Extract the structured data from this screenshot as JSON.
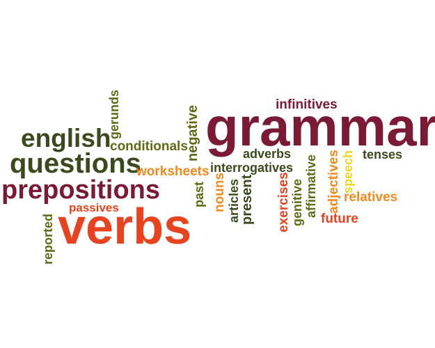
{
  "words": {
    "grammar": "grammar",
    "verbs": "verbs",
    "prepositions": "prepositions",
    "questions": "questions",
    "english": "english",
    "gerunds": "gerunds",
    "conditionals": "conditionals",
    "worksheets": "worksheets",
    "passives": "passives",
    "reported": "reported",
    "negative": "negative",
    "past": "past",
    "infinitives": "infinitives",
    "adverbs": "adverbs",
    "interrogatives": "interrogatives",
    "nouns": "nouns",
    "articles": "articles",
    "present": "present",
    "exercises": "exercises",
    "genitive": "genitive",
    "affirmative": "affirmative",
    "adjectives": "adjectives",
    "speech": "speech",
    "tenses": "tenses",
    "relatives": "relatives",
    "future": "future"
  },
  "colors": {
    "maroon": "#7a1a35",
    "dark_green": "#3a4a1c",
    "olive": "#5e6a14",
    "red": "#e8421e",
    "orange": "#f08a1c",
    "gold": "#f0c21a",
    "yellow": "#e8d81e"
  }
}
